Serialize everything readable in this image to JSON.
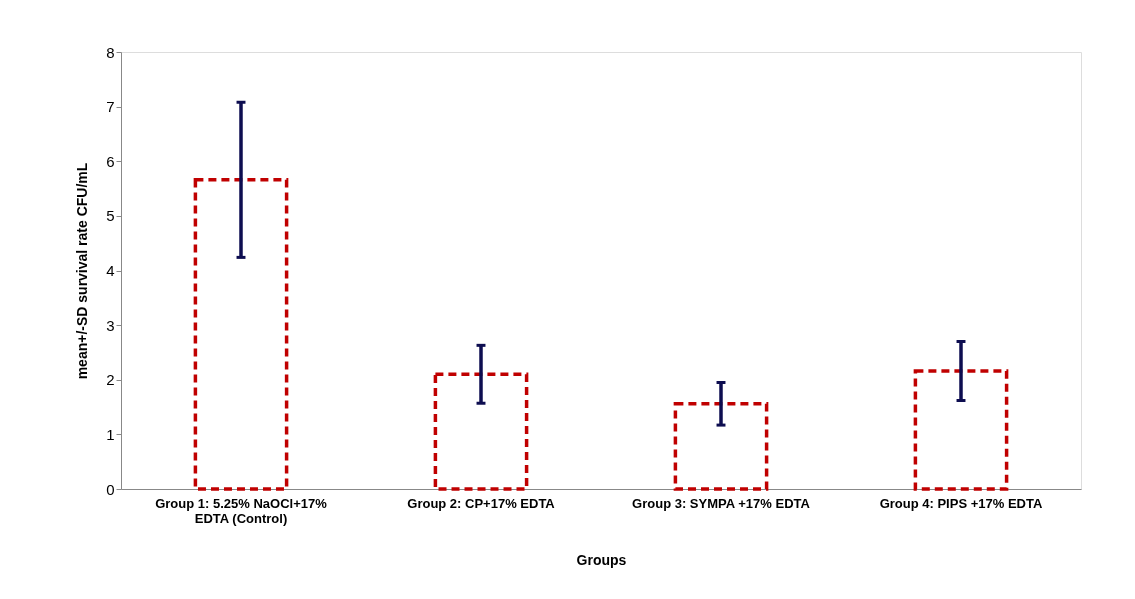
{
  "chart_data": {
    "type": "bar",
    "xlabel": "Groups",
    "ylabel": "mean+/-SD survival rate CFU/mL",
    "categories": [
      "Group 1: 5.25% NaOCl+17% EDTA (Control)",
      "Group 2: CP+17% EDTA",
      "Group 3: SYMPA +17% EDTA",
      "Group 4: PIPS +17% EDTA"
    ],
    "values": [
      5.66,
      2.1,
      1.56,
      2.16
    ],
    "errors": [
      1.42,
      0.53,
      0.39,
      0.54
    ],
    "color": "#c00000",
    "line_style": "dashed",
    "ylim": [
      0,
      8
    ],
    "yticks": [
      0,
      1,
      2,
      3,
      4,
      5,
      6,
      7,
      8
    ],
    "grid": false
  }
}
